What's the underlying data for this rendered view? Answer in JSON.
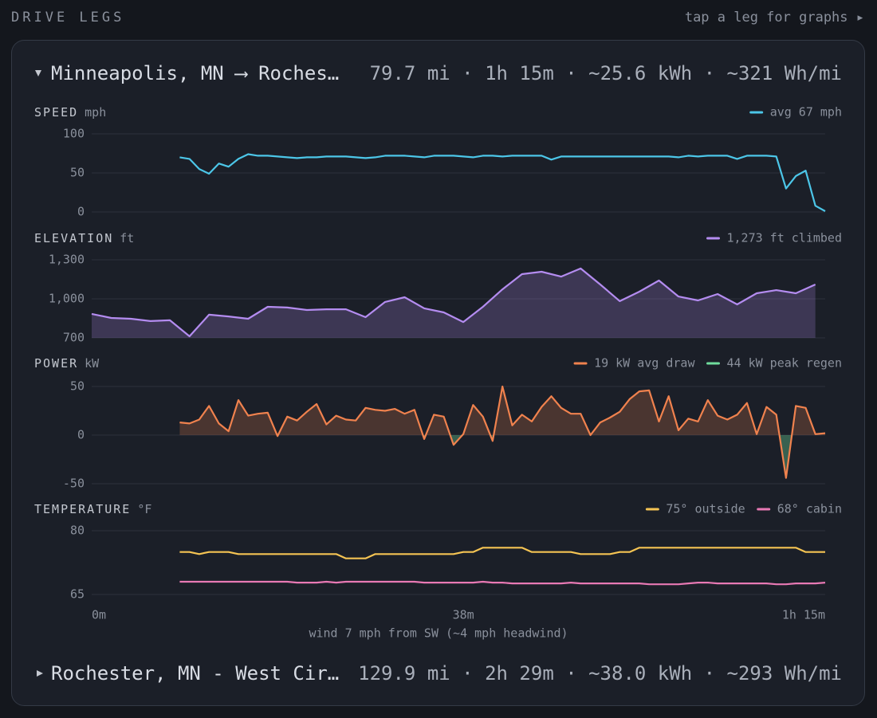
{
  "header": {
    "title": "DRIVE LEGS",
    "hint": "tap a leg for graphs ▸"
  },
  "legs": [
    {
      "title": "Minneapolis, MN ⟶ Roches…",
      "stats": "79.7 mi · 1h 15m · ~25.6 kWh · ~321 Wh/mi"
    },
    {
      "title": "Rochester, MN - West Cir…",
      "stats": "129.9 mi · 2h 29m · ~38.0 kWh · ~293 Wh/mi"
    }
  ],
  "note": "wind 7 mph from SW (~4 mph headwind)",
  "chart_data": [
    {
      "type": "line",
      "title": "SPEED",
      "unit": "mph",
      "grid": true,
      "xlim": [
        0,
        75
      ],
      "ylim": [
        0,
        100
      ],
      "yticks": [
        0,
        50,
        100
      ],
      "x": [
        9,
        10,
        11,
        12,
        13,
        14,
        15,
        16,
        17,
        18,
        19,
        20,
        21,
        22,
        23,
        24,
        25,
        26,
        27,
        28,
        29,
        30,
        31,
        32,
        33,
        34,
        35,
        36,
        37,
        38,
        39,
        40,
        41,
        42,
        43,
        44,
        45,
        46,
        47,
        48,
        49,
        50,
        51,
        52,
        53,
        54,
        55,
        56,
        57,
        58,
        59,
        60,
        61,
        62,
        63,
        64,
        65,
        66,
        67,
        68,
        69,
        70,
        71,
        72,
        73,
        74,
        75
      ],
      "series": [
        {
          "name": "avg 67 mph",
          "color": "#4cc6e8",
          "values": [
            70,
            68,
            55,
            49,
            62,
            58,
            68,
            74,
            72,
            72,
            71,
            70,
            69,
            70,
            70,
            71,
            71,
            71,
            70,
            69,
            70,
            72,
            72,
            72,
            71,
            70,
            72,
            72,
            72,
            71,
            70,
            72,
            72,
            71,
            72,
            72,
            72,
            72,
            67,
            71,
            71,
            71,
            71,
            71,
            71,
            71,
            71,
            71,
            71,
            71,
            71,
            70,
            72,
            71,
            72,
            72,
            72,
            68,
            72,
            72,
            72,
            71,
            30,
            46,
            53,
            8,
            1
          ]
        }
      ]
    },
    {
      "type": "area",
      "title": "ELEVATION",
      "unit": "ft",
      "grid": true,
      "xlim": [
        0,
        75
      ],
      "ylim": [
        700,
        1300
      ],
      "yticks": [
        700,
        {
          "value": 1000,
          "label": "1,000"
        },
        {
          "value": 1300,
          "label": "1,300"
        }
      ],
      "x": [
        0,
        2,
        4,
        6,
        8,
        10,
        12,
        14,
        16,
        18,
        20,
        22,
        24,
        26,
        28,
        30,
        32,
        34,
        36,
        38,
        40,
        42,
        44,
        46,
        48,
        50,
        52,
        54,
        56,
        58,
        60,
        62,
        64,
        66,
        68,
        70,
        72,
        74
      ],
      "series": [
        {
          "name": "1,273 ft climbed",
          "color": "#b48cf0",
          "values": [
            884,
            853,
            847,
            829,
            835,
            712,
            878,
            865,
            847,
            939,
            933,
            914,
            920,
            920,
            859,
            976,
            1012,
            927,
            896,
            822,
            939,
            1073,
            1190,
            1208,
            1171,
            1233,
            1110,
            982,
            1055,
            1141,
            1018,
            988,
            1037,
            957,
            1043,
            1067,
            1043,
            1110
          ]
        }
      ]
    },
    {
      "type": "area",
      "title": "POWER",
      "unit": "kW",
      "grid": true,
      "xlim": [
        0,
        75
      ],
      "ylim": [
        -50,
        50
      ],
      "yticks": [
        -50,
        0,
        50
      ],
      "x": [
        9,
        10,
        11,
        12,
        13,
        14,
        15,
        16,
        17,
        18,
        19,
        20,
        21,
        22,
        23,
        24,
        25,
        26,
        27,
        28,
        29,
        30,
        31,
        32,
        33,
        34,
        35,
        36,
        37,
        38,
        39,
        40,
        41,
        42,
        43,
        44,
        45,
        46,
        47,
        48,
        49,
        50,
        51,
        52,
        53,
        54,
        55,
        56,
        57,
        58,
        59,
        60,
        61,
        62,
        63,
        64,
        65,
        66,
        67,
        68,
        69,
        70,
        71,
        72,
        73,
        74,
        75
      ],
      "series": [
        {
          "name": "19 kW avg draw",
          "color": "#f0824e",
          "values": [
            13,
            12,
            16,
            30,
            12,
            4,
            36,
            20,
            22,
            23,
            -1,
            19,
            15,
            24,
            32,
            11,
            20,
            16,
            15,
            28,
            26,
            25,
            27,
            22,
            26,
            -4,
            21,
            19,
            -10,
            1,
            31,
            19,
            -6,
            50,
            10,
            21,
            14,
            29,
            40,
            28,
            22,
            22,
            0,
            13,
            18,
            24,
            37,
            45,
            46,
            14,
            40,
            5,
            17,
            14,
            36,
            20,
            16,
            21,
            33,
            1,
            29,
            21,
            -44,
            30,
            28,
            1,
            2
          ]
        }
      ],
      "regen": {
        "name": "44 kW peak regen",
        "color": "#6fdc9c"
      }
    },
    {
      "type": "line",
      "title": "TEMPERATURE",
      "unit": "°F",
      "grid": true,
      "xlim": [
        0,
        75
      ],
      "ylim": [
        65,
        80
      ],
      "yticks": [
        65,
        80
      ],
      "xticks": [
        {
          "value": 0,
          "label": "0m"
        },
        {
          "value": 38,
          "label": "38m"
        },
        {
          "value": 75,
          "label": "1h 15m"
        }
      ],
      "x": [
        9,
        10,
        11,
        12,
        13,
        14,
        15,
        16,
        17,
        18,
        19,
        20,
        21,
        22,
        23,
        24,
        25,
        26,
        27,
        28,
        29,
        30,
        31,
        32,
        33,
        34,
        35,
        36,
        37,
        38,
        39,
        40,
        41,
        42,
        43,
        44,
        45,
        46,
        47,
        48,
        49,
        50,
        51,
        52,
        53,
        54,
        55,
        56,
        57,
        58,
        59,
        60,
        61,
        62,
        63,
        64,
        65,
        66,
        67,
        68,
        69,
        70,
        71,
        72,
        73,
        74,
        75
      ],
      "series": [
        {
          "name": "75° outside",
          "color": "#f5c453",
          "values": [
            75,
            75,
            74.5,
            75,
            75,
            75,
            74.5,
            74.5,
            74.5,
            74.5,
            74.5,
            74.5,
            74.5,
            74.5,
            74.5,
            74.5,
            74.5,
            73.5,
            73.5,
            73.5,
            74.5,
            74.5,
            74.5,
            74.5,
            74.5,
            74.5,
            74.5,
            74.5,
            74.5,
            75,
            75,
            76,
            76,
            76,
            76,
            76,
            75,
            75,
            75,
            75,
            75,
            74.5,
            74.5,
            74.5,
            74.5,
            75,
            75,
            76,
            76,
            76,
            76,
            76,
            76,
            76,
            76,
            76,
            76,
            76,
            76,
            76,
            76,
            76,
            76,
            76,
            75,
            75,
            75
          ]
        },
        {
          "name": "68° cabin",
          "color": "#e879b4",
          "values": [
            68,
            68,
            68,
            68,
            68,
            68,
            68,
            68,
            68,
            68,
            68,
            68,
            67.8,
            67.8,
            67.8,
            68,
            67.8,
            68,
            68,
            68,
            68,
            68,
            68,
            68,
            68,
            67.8,
            67.8,
            67.8,
            67.8,
            67.8,
            67.8,
            68,
            67.8,
            67.8,
            67.6,
            67.6,
            67.6,
            67.6,
            67.6,
            67.6,
            67.8,
            67.6,
            67.6,
            67.6,
            67.6,
            67.6,
            67.6,
            67.6,
            67.4,
            67.4,
            67.4,
            67.4,
            67.6,
            67.8,
            67.8,
            67.6,
            67.6,
            67.6,
            67.6,
            67.6,
            67.6,
            67.4,
            67.4,
            67.6,
            67.6,
            67.6,
            67.8
          ]
        }
      ]
    }
  ]
}
